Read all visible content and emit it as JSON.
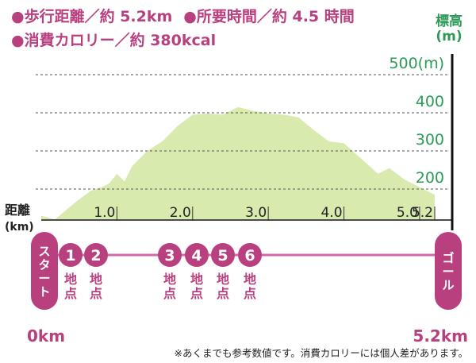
{
  "summary": {
    "distance": "●歩行距離／約 5.2km",
    "time": "●所要時間／約 4.5 時間",
    "calories": "●消費カロリー／約 380kcal"
  },
  "colors": {
    "accent": "#b8407f",
    "elevation_fill": "#d8eaae",
    "axis_green": "#2c9a56",
    "route_line": "#d06aa6"
  },
  "chart_data": {
    "type": "area",
    "title": "",
    "ylabel": "標高",
    "yunit": "(m)",
    "xlabel": "距離",
    "xunit": "(km)",
    "ylim": [
      100,
      520
    ],
    "xlim": [
      0,
      5.2
    ],
    "y_ticks": [
      {
        "value": 500,
        "label": "500(m)"
      },
      {
        "value": 400,
        "label": "400"
      },
      {
        "value": 300,
        "label": "300"
      },
      {
        "value": 200,
        "label": "200"
      }
    ],
    "x_ticks": [
      {
        "value": 1.0,
        "label": "1.0"
      },
      {
        "value": 2.0,
        "label": "2.0"
      },
      {
        "value": 3.0,
        "label": "3.0"
      },
      {
        "value": 4.0,
        "label": "4.0"
      },
      {
        "value": 5.0,
        "label": "5.0"
      },
      {
        "value": 5.2,
        "label": "5.2"
      }
    ],
    "grid": true,
    "series": [
      {
        "x": [
          0,
          0.18,
          0.45,
          0.65,
          0.8,
          0.9,
          1.0,
          1.1,
          1.2,
          1.4,
          1.6,
          1.8,
          2.0,
          2.2,
          2.4,
          2.6,
          2.8,
          3.0,
          3.2,
          3.4,
          3.6,
          3.8,
          4.0,
          4.2,
          4.45,
          4.6,
          4.8,
          5.0,
          5.2
        ],
        "y": [
          130,
          120,
          165,
          195,
          205,
          215,
          240,
          220,
          260,
          300,
          325,
          365,
          395,
          398,
          395,
          415,
          405,
          398,
          395,
          388,
          355,
          325,
          320,
          285,
          240,
          255,
          225,
          205,
          185
        ]
      }
    ]
  },
  "route": {
    "start_label": "スタート",
    "goal_label": "ゴール",
    "start_km": "0km",
    "goal_km": "5.2km",
    "points": [
      {
        "num": "1",
        "label": "地点"
      },
      {
        "num": "2",
        "label": "地点"
      },
      {
        "num": "3",
        "label": "地点"
      },
      {
        "num": "4",
        "label": "地点"
      },
      {
        "num": "5",
        "label": "地点"
      },
      {
        "num": "6",
        "label": "地点"
      }
    ]
  },
  "note": "※あくまでも参考数値です。消費カロリーには個人差があります。"
}
